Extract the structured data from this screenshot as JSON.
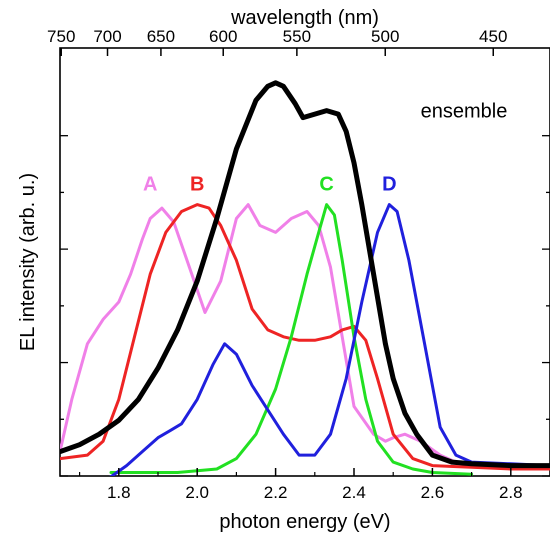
{
  "chart_data": {
    "type": "line",
    "title": "",
    "xlabel": "photon energy (eV)",
    "ylabel": "EL intensity (arb. u.)",
    "top_xlabel": "wavelength (nm)",
    "xlim": [
      1.65,
      2.9
    ],
    "ylim": [
      0,
      1.23
    ],
    "x_ticks": [
      1.8,
      2.0,
      2.2,
      2.4,
      2.6,
      2.8
    ],
    "x_tick_labels": [
      "1.8",
      "2.0",
      "2.2",
      "2.4",
      "2.6",
      "2.8"
    ],
    "top_ticks": [
      {
        "label": "750",
        "nm": 750
      },
      {
        "label": "700",
        "nm": 700
      },
      {
        "label": "650",
        "nm": 650
      },
      {
        "label": "600",
        "nm": 600
      },
      {
        "label": "550",
        "nm": 550
      },
      {
        "label": "500",
        "nm": 500
      },
      {
        "label": "450",
        "nm": 450
      }
    ],
    "y_tick_labels_shown": false,
    "grid": false,
    "annotations": [
      {
        "text": "ensemble",
        "x": 2.57,
        "y": 1.03
      }
    ],
    "series": [
      {
        "name": "ensemble",
        "color": "#000000",
        "label_xy": [
          2.57,
          1.03
        ],
        "x": [
          1.65,
          1.7,
          1.75,
          1.8,
          1.85,
          1.9,
          1.95,
          2.0,
          2.05,
          2.1,
          2.15,
          2.18,
          2.2,
          2.22,
          2.25,
          2.27,
          2.3,
          2.33,
          2.36,
          2.38,
          2.4,
          2.42,
          2.45,
          2.48,
          2.5,
          2.53,
          2.56,
          2.6,
          2.65,
          2.7,
          2.8,
          2.9
        ],
        "y": [
          0.07,
          0.09,
          0.12,
          0.16,
          0.22,
          0.31,
          0.42,
          0.56,
          0.74,
          0.94,
          1.08,
          1.12,
          1.13,
          1.12,
          1.07,
          1.03,
          1.04,
          1.05,
          1.04,
          0.99,
          0.9,
          0.78,
          0.58,
          0.38,
          0.28,
          0.18,
          0.12,
          0.06,
          0.04,
          0.035,
          0.03,
          0.03
        ]
      },
      {
        "name": "A",
        "color": "#f080e8",
        "label_xy": [
          1.88,
          0.82
        ],
        "x": [
          1.65,
          1.68,
          1.72,
          1.76,
          1.8,
          1.83,
          1.86,
          1.88,
          1.91,
          1.94,
          1.98,
          2.02,
          2.06,
          2.1,
          2.13,
          2.16,
          2.2,
          2.24,
          2.28,
          2.31,
          2.34,
          2.37,
          2.4,
          2.45,
          2.48,
          2.5,
          2.53,
          2.57,
          2.62,
          2.66
        ],
        "y": [
          0.07,
          0.22,
          0.38,
          0.45,
          0.5,
          0.58,
          0.68,
          0.74,
          0.77,
          0.73,
          0.6,
          0.47,
          0.56,
          0.74,
          0.78,
          0.72,
          0.7,
          0.74,
          0.76,
          0.72,
          0.6,
          0.4,
          0.2,
          0.12,
          0.1,
          0.11,
          0.12,
          0.1,
          0.06,
          0.04
        ]
      },
      {
        "name": "B",
        "color": "#ee2424",
        "label_xy": [
          2.0,
          0.82
        ],
        "x": [
          1.65,
          1.72,
          1.76,
          1.8,
          1.84,
          1.88,
          1.92,
          1.96,
          2.0,
          2.03,
          2.06,
          2.1,
          2.14,
          2.18,
          2.22,
          2.26,
          2.3,
          2.34,
          2.37,
          2.4,
          2.43,
          2.46,
          2.5,
          2.55,
          2.6,
          2.7,
          2.8,
          2.9
        ],
        "y": [
          0.05,
          0.06,
          0.1,
          0.22,
          0.4,
          0.58,
          0.7,
          0.76,
          0.78,
          0.77,
          0.72,
          0.62,
          0.48,
          0.42,
          0.4,
          0.39,
          0.39,
          0.4,
          0.42,
          0.43,
          0.39,
          0.28,
          0.12,
          0.05,
          0.03,
          0.025,
          0.02,
          0.02
        ]
      },
      {
        "name": "C",
        "color": "#22e022",
        "label_xy": [
          2.33,
          0.82
        ],
        "x": [
          1.78,
          1.85,
          1.9,
          1.95,
          2.0,
          2.05,
          2.1,
          2.15,
          2.2,
          2.24,
          2.28,
          2.31,
          2.33,
          2.35,
          2.37,
          2.4,
          2.43,
          2.46,
          2.5,
          2.55,
          2.6,
          2.7
        ],
        "y": [
          0.01,
          0.01,
          0.01,
          0.01,
          0.015,
          0.02,
          0.05,
          0.12,
          0.25,
          0.4,
          0.58,
          0.7,
          0.78,
          0.75,
          0.62,
          0.4,
          0.22,
          0.1,
          0.04,
          0.02,
          0.01,
          0.005
        ]
      },
      {
        "name": "D",
        "color": "#2020dd",
        "label_xy": [
          2.49,
          0.82
        ],
        "x": [
          1.77,
          1.82,
          1.86,
          1.9,
          1.93,
          1.96,
          2.0,
          2.04,
          2.07,
          2.1,
          2.14,
          2.18,
          2.22,
          2.26,
          2.3,
          2.34,
          2.38,
          2.42,
          2.46,
          2.49,
          2.51,
          2.54,
          2.58,
          2.62,
          2.66,
          2.7,
          2.8,
          2.9
        ],
        "y": [
          -0.01,
          0.03,
          0.07,
          0.11,
          0.13,
          0.15,
          0.22,
          0.32,
          0.38,
          0.35,
          0.26,
          0.19,
          0.12,
          0.06,
          0.06,
          0.12,
          0.28,
          0.5,
          0.7,
          0.78,
          0.76,
          0.62,
          0.38,
          0.14,
          0.06,
          0.04,
          0.035,
          0.03
        ]
      }
    ]
  }
}
